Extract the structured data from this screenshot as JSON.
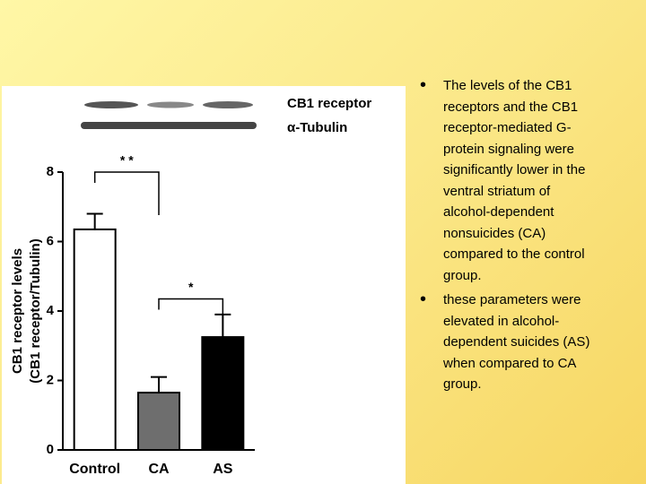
{
  "chart_data": {
    "type": "bar",
    "blot_labels": [
      "CB1 receptor",
      "α-Tubulin"
    ],
    "y_label": [
      "CB1 receptor levels",
      "(CB1 receptor/Tubulin)"
    ],
    "categories": [
      "Control",
      "CA",
      "AS"
    ],
    "values": [
      6.35,
      1.65,
      3.25
    ],
    "errors": [
      0.45,
      0.45,
      0.65
    ],
    "colors": [
      "#ffffff",
      "#6e6e6e",
      "#000000"
    ],
    "ylim": [
      0,
      8
    ],
    "yticks": [
      0,
      2,
      4,
      6,
      8
    ],
    "annotations": [
      "* *",
      "*"
    ]
  },
  "bullets": [
    "The levels of the CB1 receptors and the CB1 receptor-mediated G-protein signaling were significantly lower in the ventral striatum of alcohol-dependent nonsuicides (CA) compared to the control group.",
    "these parameters were elevated in alcohol-dependent suicides (AS) when compared to CA group."
  ]
}
